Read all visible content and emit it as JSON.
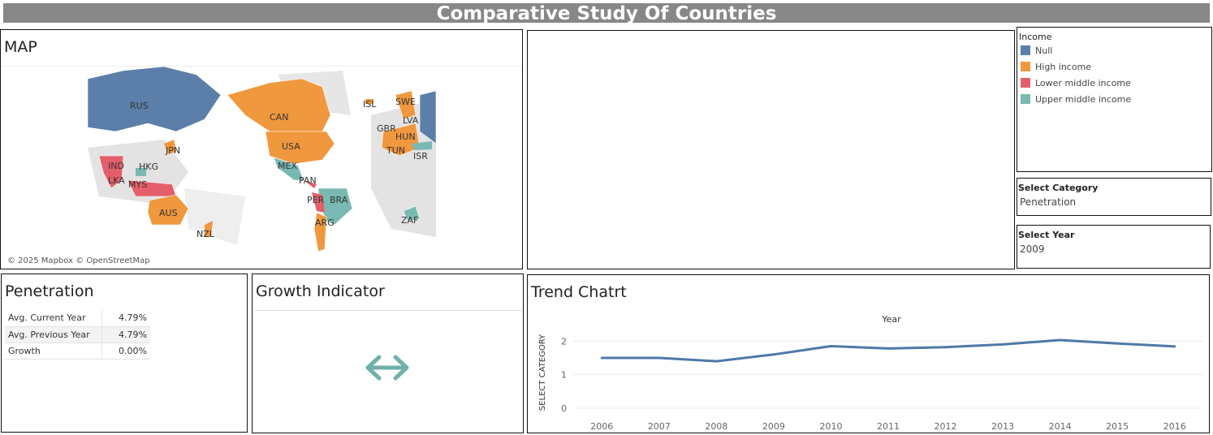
{
  "dashboard": {
    "title": "Comparative Study Of Countries"
  },
  "map": {
    "title": "MAP",
    "credit": "© 2025 Mapbox © OpenStreetMap",
    "country_labels": [
      "RUS",
      "CAN",
      "USA",
      "MEX",
      "PAN",
      "PER",
      "BRA",
      "ARG",
      "ISL",
      "SWE",
      "LVA",
      "GBR",
      "HUN",
      "TUN",
      "ISR",
      "ZAF",
      "JPN",
      "IND",
      "HKG",
      "LKA",
      "MYS",
      "AUS",
      "NZL"
    ]
  },
  "legend": {
    "title": "Income",
    "items": [
      {
        "label": "Null",
        "color": "#5b7fa8"
      },
      {
        "label": "High income",
        "color": "#f0983e"
      },
      {
        "label": "Lower middle income",
        "color": "#e45f6a"
      },
      {
        "label": "Upper middle income",
        "color": "#79b9b2"
      }
    ]
  },
  "filters": {
    "category": {
      "title": "Select Category",
      "value": "Penetration"
    },
    "year": {
      "title": "Select Year",
      "value": "2009"
    }
  },
  "penetration": {
    "title": "Penetration",
    "rows": [
      {
        "label": "Avg. Current Year",
        "value": "4.79%"
      },
      {
        "label": "Avg. Previous Year",
        "value": "4.79%"
      },
      {
        "label": "Growth",
        "value": "0.00%"
      }
    ]
  },
  "growth": {
    "title": "Growth Indicator",
    "icon": "left-right-arrow-icon",
    "color": "#6fb0aa"
  },
  "trend": {
    "title": "Trend Chatrt"
  },
  "chart_data": {
    "type": "line",
    "title": "",
    "xlabel": "Year",
    "ylabel": "SELECT CATEGORY",
    "categories": [
      "2006",
      "2007",
      "2008",
      "2009",
      "2010",
      "2011",
      "2012",
      "2013",
      "2014",
      "2015",
      "2016"
    ],
    "series": [
      {
        "values": [
          1.5,
          1.5,
          1.4,
          1.6,
          1.85,
          1.78,
          1.82,
          1.9,
          2.03,
          1.93,
          1.84
        ]
      }
    ],
    "ylim": [
      0,
      2.2
    ],
    "yticks": [
      "0",
      "1",
      "2"
    ],
    "line_color": "#4e79a7",
    "grid": true
  }
}
